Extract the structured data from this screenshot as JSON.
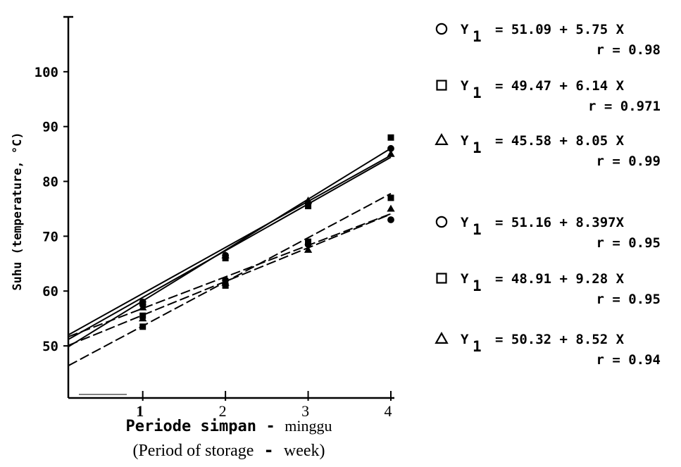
{
  "chart_data": {
    "type": "line",
    "ylabel": "Suhu (temperature, °C)",
    "xlabel_main": "Periode simpan",
    "xlabel_unit": "minggu",
    "xlabel_en": "(Period of storage",
    "xlabel_en_unit": "week)",
    "xlabel_dash": "-",
    "x_ticks": [
      "1",
      "2",
      "3",
      "4"
    ],
    "y_ticks": [
      "50",
      "60",
      "70",
      "80",
      "90",
      "100"
    ],
    "xlim": [
      0.1,
      4
    ],
    "ylim": [
      40.5,
      110
    ],
    "series": [
      {
        "marker": "circle",
        "style": "dashed",
        "intercept": 51.09,
        "slope": 5.75,
        "eq": "= 51.09 + 5.75 X",
        "r": "r = 0.98",
        "points": [
          [
            1,
            58
          ],
          [
            2,
            66.5
          ],
          [
            3,
            76
          ],
          [
            4,
            86
          ]
        ]
      },
      {
        "marker": "square",
        "style": "dashed",
        "intercept": 49.47,
        "slope": 6.14,
        "eq": "= 49.47 + 6.14 X",
        "r": "r = 0.971",
        "points": [
          [
            1,
            55.5
          ],
          [
            2,
            66
          ],
          [
            3,
            75.5
          ],
          [
            4,
            88
          ]
        ]
      },
      {
        "marker": "triangle",
        "style": "dashed",
        "intercept": 45.58,
        "slope": 8.05,
        "eq": "= 45.58 + 8.05 X",
        "r": "r = 0.99",
        "points": [
          [
            1,
            57
          ],
          [
            2,
            66.5
          ],
          [
            3,
            76.5
          ],
          [
            4,
            85
          ]
        ]
      },
      {
        "marker": "circle",
        "style": "solid",
        "intercept": 51.16,
        "slope": 8.397,
        "eq": "= 51.16 + 8.397X",
        "r": "r = 0.95",
        "points": [
          [
            1,
            57.5
          ],
          [
            2,
            62
          ],
          [
            3,
            68.5
          ],
          [
            4,
            73
          ]
        ]
      },
      {
        "marker": "square",
        "style": "solid",
        "intercept": 48.91,
        "slope": 9.28,
        "eq": "= 48.91 + 9.28 X",
        "r": "r = 0.95",
        "points": [
          [
            1,
            53.5
          ],
          [
            2,
            61
          ],
          [
            3,
            69
          ],
          [
            4,
            77
          ]
        ]
      },
      {
        "marker": "triangle",
        "style": "solid",
        "intercept": 50.32,
        "slope": 8.52,
        "eq": "= 50.32 + 8.52 X",
        "r": "r = 0.94",
        "points": [
          [
            1,
            55
          ],
          [
            2,
            61.5
          ],
          [
            3,
            67.5
          ],
          [
            4,
            75
          ]
        ]
      }
    ],
    "legend_y": "Y",
    "legend_sub": "1"
  }
}
